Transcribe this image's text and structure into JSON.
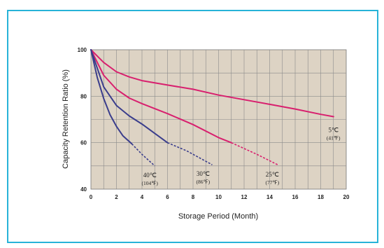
{
  "chart_data": {
    "type": "line",
    "title": "",
    "xlabel": "Storage Period (Month)",
    "ylabel": "Capacity Retention Ratio (%)",
    "xlim": [
      0,
      20
    ],
    "ylim": [
      40,
      100
    ],
    "x_ticks": [
      "0",
      "2",
      "4",
      "6",
      "8",
      "10",
      "12",
      "14",
      "16",
      "18",
      "20"
    ],
    "y_ticks": [
      "40",
      "60",
      "80",
      "100"
    ],
    "grid": true,
    "colors": {
      "plot_background": "#ddd3c4",
      "grid": "#8a8a8a",
      "warm_series": "#d81f6e",
      "cold_series": "#3a3d8c",
      "border": "#27b3d8"
    },
    "series": [
      {
        "name": "5℃",
        "sublabel": "(41℉)",
        "color": "#d81f6e",
        "solid": [
          [
            0,
            100
          ],
          [
            1,
            94.5
          ],
          [
            2,
            90.5
          ],
          [
            3,
            88.3
          ],
          [
            4,
            86.7
          ],
          [
            6,
            84.8
          ],
          [
            8,
            83
          ],
          [
            10,
            80.5
          ],
          [
            12,
            78.5
          ],
          [
            14,
            76.5
          ],
          [
            16,
            74.5
          ],
          [
            18,
            72.2
          ],
          [
            19,
            71.2
          ]
        ],
        "dashed": []
      },
      {
        "name": "25℃",
        "sublabel": "(77℉)",
        "color": "#d81f6e",
        "solid": [
          [
            0,
            100
          ],
          [
            1,
            89
          ],
          [
            2,
            83
          ],
          [
            3,
            79.2
          ],
          [
            4,
            76.8
          ],
          [
            6,
            72.5
          ],
          [
            8,
            67.8
          ],
          [
            10,
            62.2
          ],
          [
            11,
            60
          ]
        ],
        "dashed": [
          [
            11,
            60
          ],
          [
            13,
            55
          ],
          [
            14.7,
            50.3
          ]
        ]
      },
      {
        "name": "30℃",
        "sublabel": "(86℉)",
        "color": "#3a3d8c",
        "solid": [
          [
            0,
            100
          ],
          [
            1,
            84
          ],
          [
            2,
            76
          ],
          [
            3,
            71.5
          ],
          [
            4,
            68
          ],
          [
            5,
            64
          ],
          [
            6,
            60
          ]
        ],
        "dashed": [
          [
            6,
            60
          ],
          [
            7.5,
            56.5
          ],
          [
            9.5,
            50.5
          ]
        ]
      },
      {
        "name": "40℃",
        "sublabel": "(104℉)",
        "color": "#3a3d8c",
        "solid": [
          [
            0,
            100
          ],
          [
            0.5,
            88
          ],
          [
            1,
            79
          ],
          [
            1.5,
            72
          ],
          [
            2,
            67
          ],
          [
            2.5,
            63
          ],
          [
            3.2,
            59.5
          ]
        ],
        "dashed": [
          [
            3.2,
            59.5
          ],
          [
            4,
            55
          ],
          [
            5,
            50
          ]
        ]
      }
    ]
  }
}
